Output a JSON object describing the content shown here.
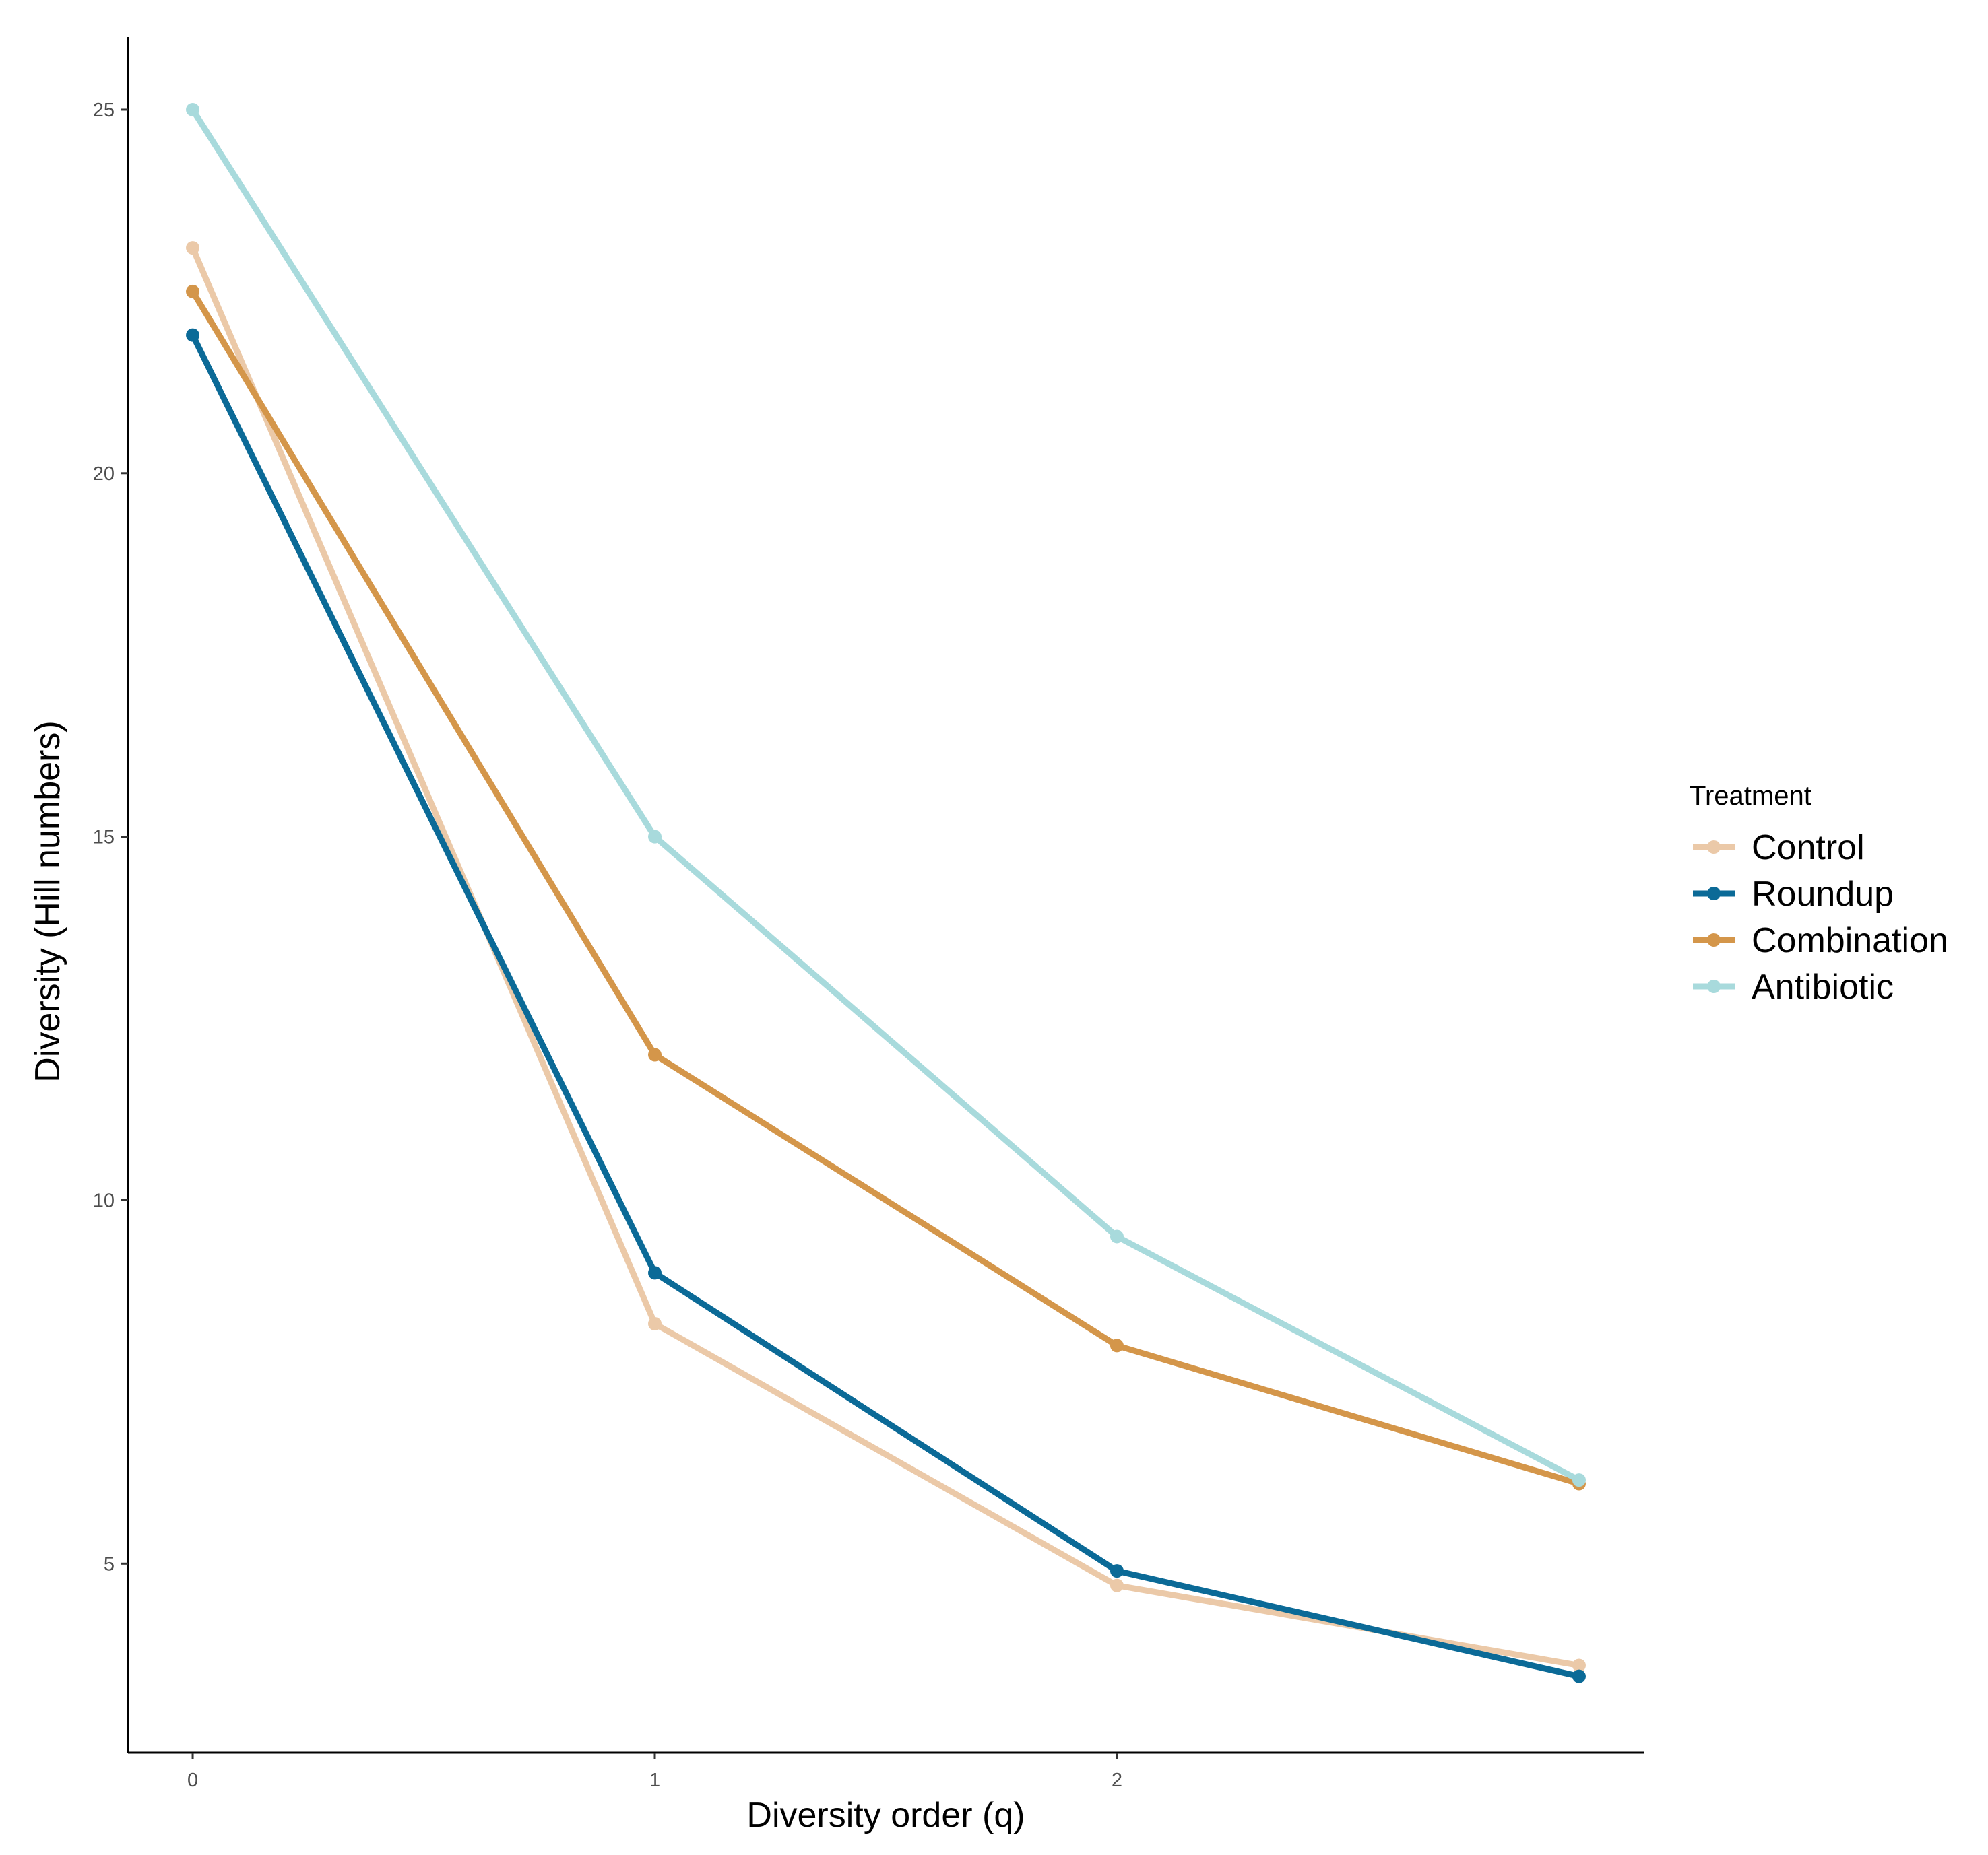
{
  "chart_data": {
    "type": "line",
    "title": "",
    "xlabel": "Diversity order (q)",
    "ylabel": "Diversity (Hill numbers)",
    "x": [
      0,
      1,
      2,
      3
    ],
    "x_ticks": [
      0,
      1,
      2
    ],
    "x_tick_labels": [
      "0",
      "1",
      "2"
    ],
    "xlim": [
      -0.14,
      3.14
    ],
    "y_ticks": [
      5,
      10,
      15,
      20,
      25
    ],
    "y_tick_labels": [
      "5",
      "10",
      "15",
      "20",
      "25"
    ],
    "ylim": [
      2.4,
      26.0
    ],
    "grid": false,
    "legend": {
      "title": "Treatment",
      "position": "right"
    },
    "series": [
      {
        "name": "Control",
        "color": "#EBC9A8",
        "values": [
          23.1,
          8.3,
          4.7,
          3.6
        ]
      },
      {
        "name": "Roundup",
        "color": "#0B6A97",
        "values": [
          21.9,
          9.0,
          4.9,
          3.45
        ]
      },
      {
        "name": "Combination",
        "color": "#D4964A",
        "values": [
          22.5,
          12.0,
          8.0,
          6.1
        ]
      },
      {
        "name": "Antibiotic",
        "color": "#A8DADC",
        "values": [
          25.0,
          15.0,
          9.5,
          6.15
        ]
      }
    ]
  }
}
